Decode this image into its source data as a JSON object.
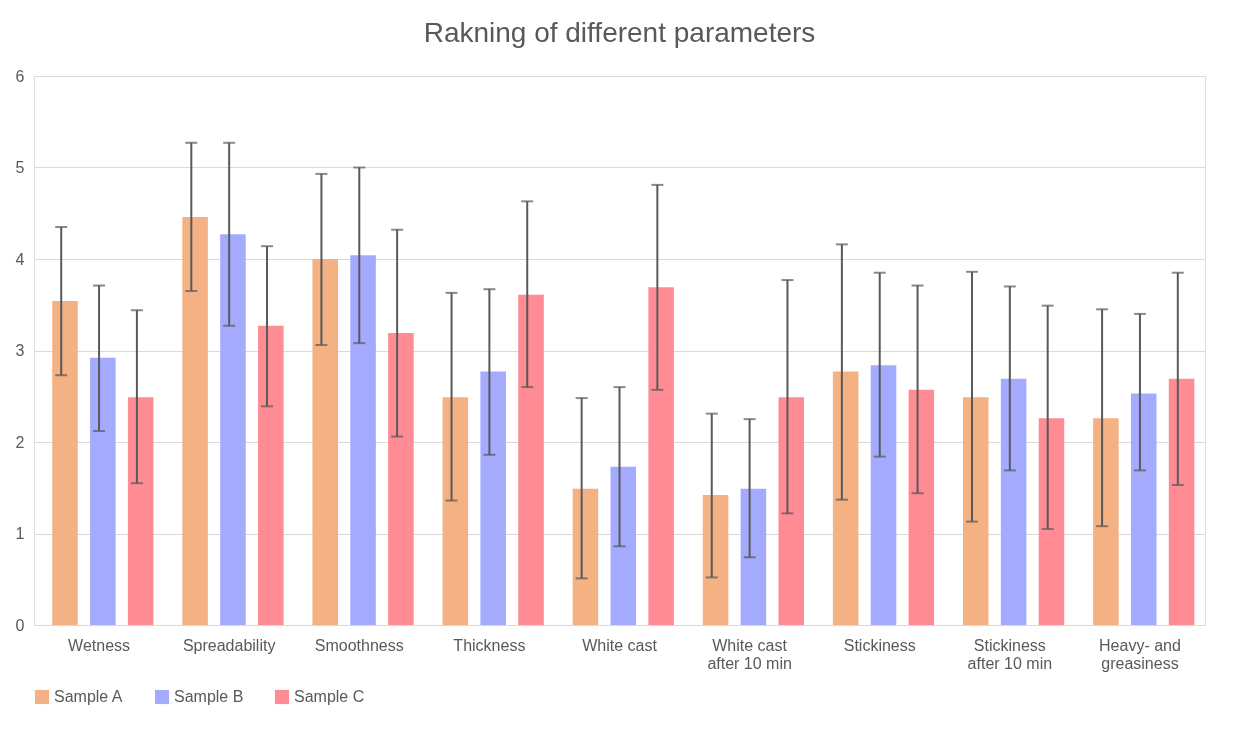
{
  "chart_data": {
    "type": "bar",
    "title": "Rakning of different parameters",
    "categories": [
      "Wetness",
      "Spreadability",
      "Smoothness",
      "Thickness",
      "White cast",
      "White cast\nafter 10 min",
      "Stickiness",
      "Stickiness\nafter 10 min",
      "Heavy- and\ngreasiness"
    ],
    "series": [
      {
        "name": "Sample A",
        "color": "#f4b183",
        "values": [
          3.54,
          4.46,
          4.0,
          2.49,
          1.49,
          1.42,
          2.77,
          2.49,
          2.26
        ],
        "errors": [
          [
            2.73,
            4.35
          ],
          [
            3.65,
            5.27
          ],
          [
            3.06,
            4.93
          ],
          [
            1.36,
            3.63
          ],
          [
            0.51,
            2.48
          ],
          [
            0.52,
            2.31
          ],
          [
            1.37,
            4.16
          ],
          [
            1.13,
            3.86
          ],
          [
            1.08,
            3.45
          ]
        ]
      },
      {
        "name": "Sample B",
        "color": "#a4abfe",
        "values": [
          2.92,
          4.27,
          4.04,
          2.77,
          1.73,
          1.49,
          2.84,
          2.69,
          2.53
        ],
        "errors": [
          [
            2.12,
            3.71
          ],
          [
            3.27,
            5.27
          ],
          [
            3.08,
            5.0
          ],
          [
            1.86,
            3.67
          ],
          [
            0.86,
            2.6
          ],
          [
            0.74,
            2.25
          ],
          [
            1.84,
            3.85
          ],
          [
            1.69,
            3.7
          ],
          [
            1.69,
            3.4
          ]
        ]
      },
      {
        "name": "Sample C",
        "color": "#ff8b94",
        "values": [
          2.49,
          3.27,
          3.19,
          3.61,
          3.69,
          2.49,
          2.57,
          2.26,
          2.69
        ],
        "errors": [
          [
            1.55,
            3.44
          ],
          [
            2.39,
            4.14
          ],
          [
            2.06,
            4.32
          ],
          [
            2.6,
            4.63
          ],
          [
            2.57,
            4.81
          ],
          [
            1.22,
            3.77
          ],
          [
            1.44,
            3.71
          ],
          [
            1.05,
            3.49
          ],
          [
            1.53,
            3.85
          ]
        ]
      }
    ],
    "ylim": [
      0,
      6
    ],
    "yticks": [
      0,
      1,
      2,
      3,
      4,
      5,
      6
    ],
    "grid": "y",
    "legend": "bottom"
  }
}
